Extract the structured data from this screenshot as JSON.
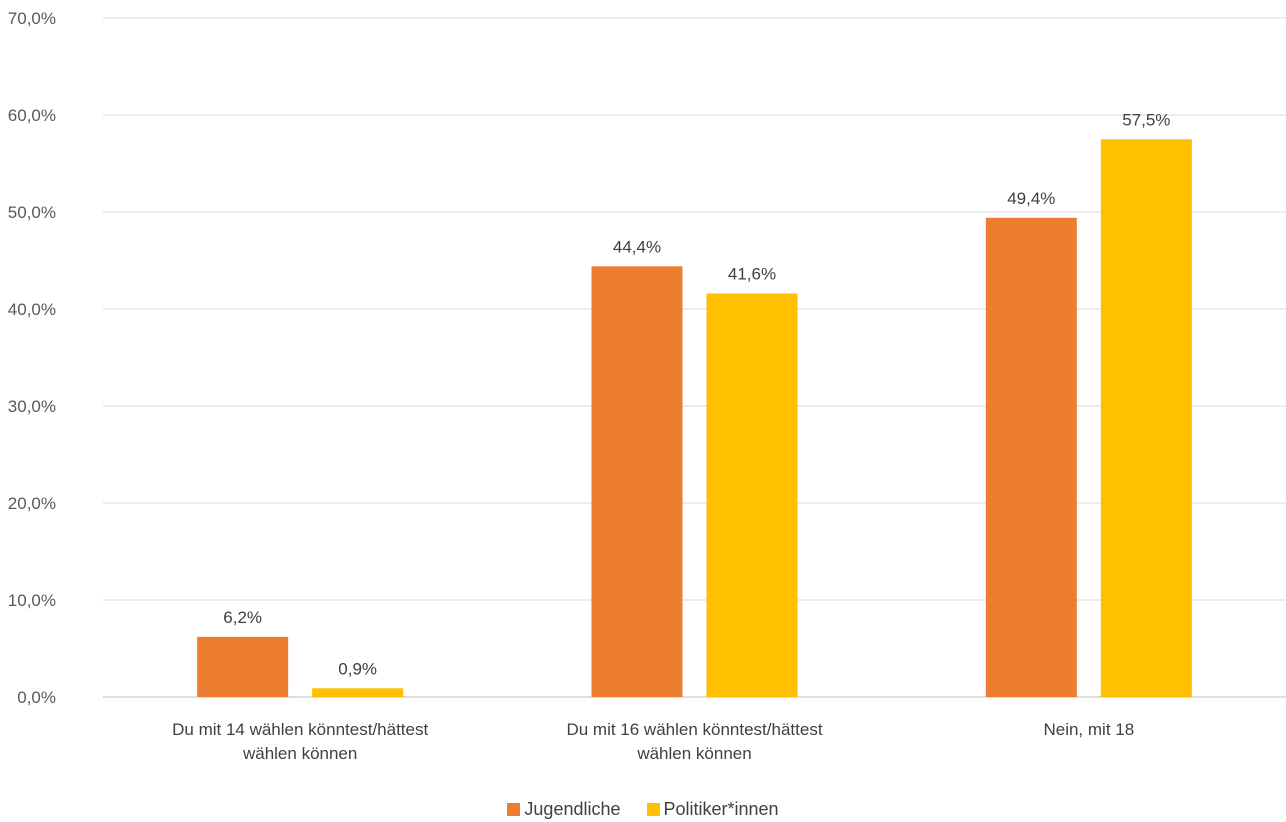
{
  "chart_data": {
    "type": "bar",
    "categories": [
      [
        "Du mit 14 wählen könntest/hättest",
        "wählen können"
      ],
      [
        "Du mit 16 wählen könntest/hättest",
        "wählen können"
      ],
      [
        "Nein, mit 18"
      ]
    ],
    "series": [
      {
        "name": "Jugendliche",
        "color": "#ED7D31",
        "values": [
          6.2,
          44.4,
          49.4
        ],
        "labels": [
          "6,2%",
          "44,4%",
          "49,4%"
        ]
      },
      {
        "name": "Politiker*innen",
        "color": "#FFC000",
        "values": [
          0.9,
          41.6,
          57.5
        ],
        "labels": [
          "0,9%",
          "41,6%",
          "57,5%"
        ]
      }
    ],
    "yticks": [
      0,
      10,
      20,
      30,
      40,
      50,
      60,
      70
    ],
    "ytick_labels": [
      "0,0%",
      "10,0%",
      "20,0%",
      "30,0%",
      "40,0%",
      "50,0%",
      "60,0%",
      "70,0%"
    ],
    "ylim": [
      0,
      70
    ],
    "grid": true,
    "legend_position": "bottom"
  }
}
